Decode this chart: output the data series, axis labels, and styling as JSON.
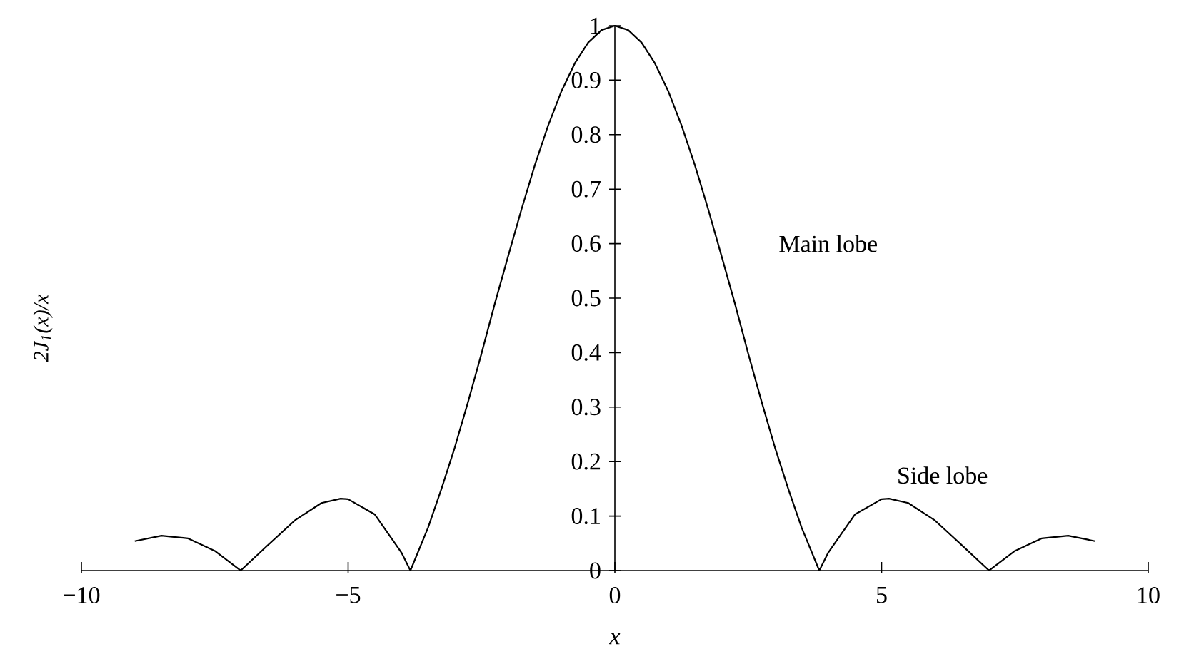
{
  "chart_data": {
    "type": "line",
    "xlabel": "x",
    "ylabel": "2J$_{1}$(x)/x",
    "annotations": [
      "Main lobe",
      "Side lobe"
    ],
    "series": [
      {
        "color": "#000000",
        "x": [
          -9,
          -8.5,
          -8,
          -7.5,
          -7.016,
          -6.5,
          -6,
          -5.5,
          -5.14,
          -5,
          -4.5,
          -4,
          -3.832,
          -3.5,
          -3.25,
          -3,
          -2.75,
          -2.5,
          -2.25,
          -2,
          -1.75,
          -1.5,
          -1.25,
          -1,
          -0.75,
          -0.5,
          -0.25,
          0,
          0.25,
          0.5,
          0.75,
          1,
          1.25,
          1.5,
          1.75,
          2,
          2.25,
          2.5,
          2.75,
          3,
          3.25,
          3.5,
          3.832,
          4,
          4.5,
          5,
          5.14,
          5.5,
          6,
          6.5,
          7.016,
          7.5,
          8,
          8.5,
          9
        ],
        "values": [
          0.054,
          0.064,
          0.059,
          0.036,
          0,
          0.047,
          0.092,
          0.124,
          0.132,
          0.131,
          0.103,
          0.033,
          0,
          0.079,
          0.15,
          0.226,
          0.31,
          0.398,
          0.49,
          0.577,
          0.663,
          0.744,
          0.817,
          0.88,
          0.931,
          0.969,
          0.992,
          1,
          0.992,
          0.969,
          0.931,
          0.88,
          0.817,
          0.744,
          0.663,
          0.577,
          0.49,
          0.398,
          0.31,
          0.226,
          0.15,
          0.079,
          0,
          0.033,
          0.103,
          0.131,
          0.132,
          0.124,
          0.092,
          0.047,
          0,
          0.036,
          0.059,
          0.064,
          0.054
        ]
      }
    ],
    "xlim": [
      -10,
      10
    ],
    "xticks": [
      {
        "value": -10,
        "label": "−10"
      },
      {
        "value": -5,
        "label": "−5"
      },
      0,
      5,
      10
    ],
    "ylim": [
      0,
      1
    ],
    "yticks": [
      0,
      0.1,
      0.2,
      0.3,
      0.4,
      0.5,
      0.6,
      0.7,
      0.8,
      0.9,
      1
    ],
    "marker": "none",
    "line_style": "solid"
  }
}
